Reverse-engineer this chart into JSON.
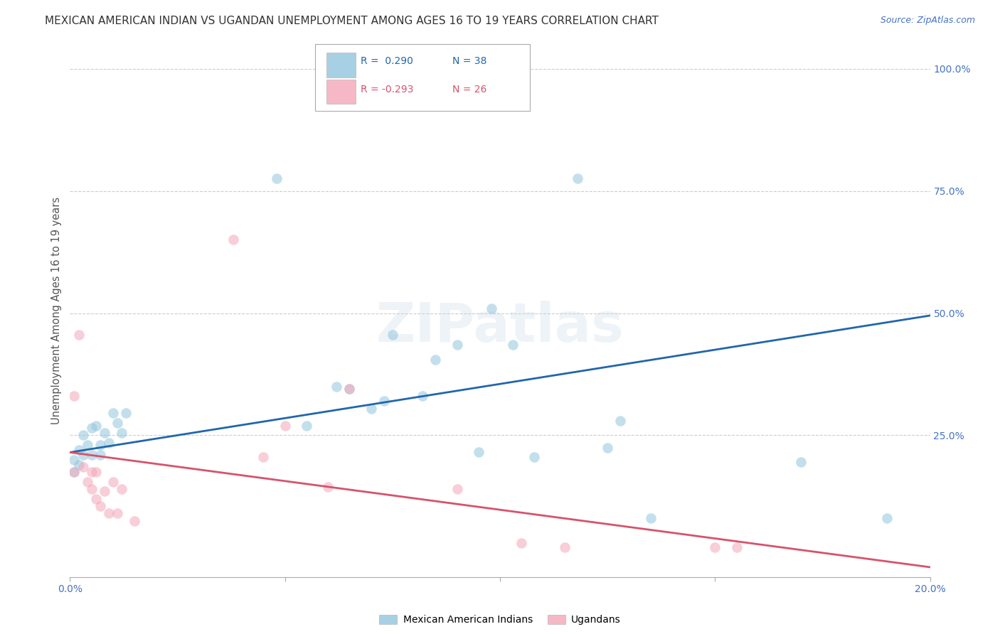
{
  "title": "MEXICAN AMERICAN INDIAN VS UGANDAN UNEMPLOYMENT AMONG AGES 16 TO 19 YEARS CORRELATION CHART",
  "source": "Source: ZipAtlas.com",
  "ylabel": "Unemployment Among Ages 16 to 19 years",
  "xlim": [
    0.0,
    0.2
  ],
  "ylim": [
    -0.04,
    1.05
  ],
  "xticks": [
    0.0,
    0.05,
    0.1,
    0.15,
    0.2
  ],
  "xtick_labels": [
    "0.0%",
    "",
    "",
    "",
    "20.0%"
  ],
  "yticks_right": [
    0.25,
    0.5,
    0.75,
    1.0
  ],
  "ytick_right_labels": [
    "25.0%",
    "50.0%",
    "75.0%",
    "100.0%"
  ],
  "blue_color": "#92c5de",
  "pink_color": "#f4a6b8",
  "blue_line_color": "#2166ac",
  "pink_line_color": "#d6536d",
  "legend_R_blue": "R =  0.290",
  "legend_N_blue": "N = 38",
  "legend_R_pink": "R = -0.293",
  "legend_N_pink": "N = 26",
  "watermark": "ZIPatlas",
  "blue_x": [
    0.001,
    0.001,
    0.002,
    0.002,
    0.003,
    0.003,
    0.004,
    0.005,
    0.005,
    0.006,
    0.007,
    0.007,
    0.008,
    0.009,
    0.01,
    0.011,
    0.012,
    0.013,
    0.048,
    0.055,
    0.062,
    0.065,
    0.07,
    0.073,
    0.075,
    0.082,
    0.085,
    0.09,
    0.095,
    0.098,
    0.103,
    0.108,
    0.118,
    0.125,
    0.128,
    0.135,
    0.17,
    0.19
  ],
  "blue_y": [
    0.175,
    0.2,
    0.22,
    0.19,
    0.21,
    0.25,
    0.23,
    0.21,
    0.265,
    0.27,
    0.23,
    0.21,
    0.255,
    0.235,
    0.295,
    0.275,
    0.255,
    0.295,
    0.775,
    0.27,
    0.35,
    0.345,
    0.305,
    0.32,
    0.455,
    0.33,
    0.405,
    0.435,
    0.215,
    0.51,
    0.435,
    0.205,
    0.775,
    0.225,
    0.28,
    0.08,
    0.195,
    0.08
  ],
  "pink_x": [
    0.001,
    0.001,
    0.002,
    0.003,
    0.004,
    0.005,
    0.005,
    0.006,
    0.006,
    0.007,
    0.008,
    0.009,
    0.01,
    0.011,
    0.012,
    0.015,
    0.038,
    0.045,
    0.05,
    0.06,
    0.065,
    0.09,
    0.105,
    0.115,
    0.15,
    0.155
  ],
  "pink_y": [
    0.175,
    0.33,
    0.455,
    0.185,
    0.155,
    0.14,
    0.175,
    0.12,
    0.175,
    0.105,
    0.135,
    0.09,
    0.155,
    0.09,
    0.14,
    0.075,
    0.65,
    0.205,
    0.27,
    0.145,
    0.345,
    0.14,
    0.03,
    0.02,
    0.02,
    0.02
  ],
  "blue_trend_x": [
    0.0,
    0.2
  ],
  "blue_trend_y": [
    0.215,
    0.495
  ],
  "pink_trend_x": [
    0.0,
    0.2
  ],
  "pink_trend_y": [
    0.215,
    -0.02
  ],
  "background_color": "#ffffff",
  "grid_color": "#cccccc",
  "title_color": "#333333",
  "axis_label_color": "#555555",
  "right_tick_color": "#4472c4",
  "marker_size": 110,
  "marker_alpha": 0.55,
  "title_fontsize": 11,
  "source_fontsize": 9,
  "legend_fontsize": 10,
  "ylabel_fontsize": 10.5,
  "watermark_color": "#c8d8e8",
  "watermark_fontsize": 55,
  "watermark_alpha": 0.3
}
